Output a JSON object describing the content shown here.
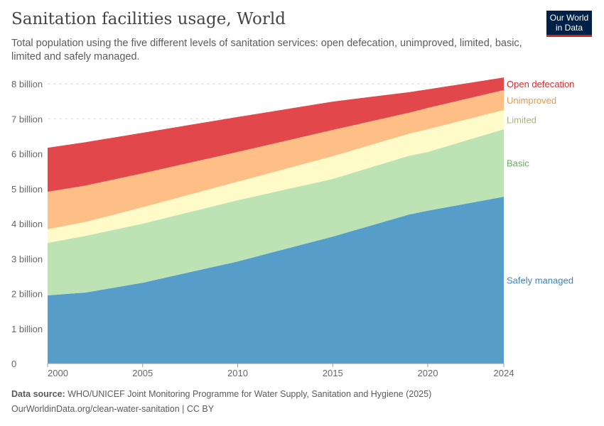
{
  "header": {
    "title": "Sanitation facilities usage, World",
    "subtitle": "Total population using the five different levels of sanitation services: open defecation, unimproved, limited, basic, limited and safely managed.",
    "logo_text": "Our World in Data"
  },
  "footer": {
    "source_label": "Data source:",
    "source_text": "WHO/UNICEF Joint Monitoring Programme for Water Supply, Sanitation and Hygiene (2025)",
    "url_line": "OurWorldinData.org/clean-water-sanitation | CC BY"
  },
  "chart_data": {
    "type": "area",
    "stacked": true,
    "title": "Sanitation facilities usage, World",
    "xlabel": "",
    "ylabel": "",
    "x": [
      2000,
      2002,
      2005,
      2010,
      2015,
      2019,
      2020,
      2024
    ],
    "xticks": [
      "2000",
      "2005",
      "2010",
      "2015",
      "2020",
      "2024"
    ],
    "yticks": [
      "0",
      "1 billion",
      "2 billion",
      "3 billion",
      "4 billion",
      "5 billion",
      "6 billion",
      "7 billion",
      "8 billion"
    ],
    "ylim": [
      0,
      8000000000
    ],
    "grid": "horizontal dashed",
    "legend": "right, inline labels",
    "series": [
      {
        "name": "Safely managed",
        "color": "#569ec9",
        "label_color": "#3a85c0",
        "values": [
          1950000000,
          2030000000,
          2310000000,
          2920000000,
          3630000000,
          4260000000,
          4370000000,
          4770000000
        ]
      },
      {
        "name": "Basic",
        "color": "#bde3b5",
        "label_color": "#69ad5c",
        "values": [
          1500000000,
          1620000000,
          1690000000,
          1750000000,
          1650000000,
          1680000000,
          1680000000,
          1930000000
        ]
      },
      {
        "name": "Limited",
        "color": "#fefbc9",
        "label_color": "#a5b47a",
        "values": [
          390000000,
          400000000,
          470000000,
          530000000,
          650000000,
          630000000,
          650000000,
          550000000
        ]
      },
      {
        "name": "Unimproved",
        "color": "#fdbf85",
        "label_color": "#e8974f",
        "values": [
          1070000000,
          1040000000,
          970000000,
          850000000,
          750000000,
          600000000,
          610000000,
          570000000
        ]
      },
      {
        "name": "Open defecation",
        "color": "#e1474b",
        "label_color": "#d62d2f",
        "values": [
          1260000000,
          1240000000,
          1160000000,
          1000000000,
          810000000,
          590000000,
          530000000,
          360000000
        ]
      }
    ]
  }
}
